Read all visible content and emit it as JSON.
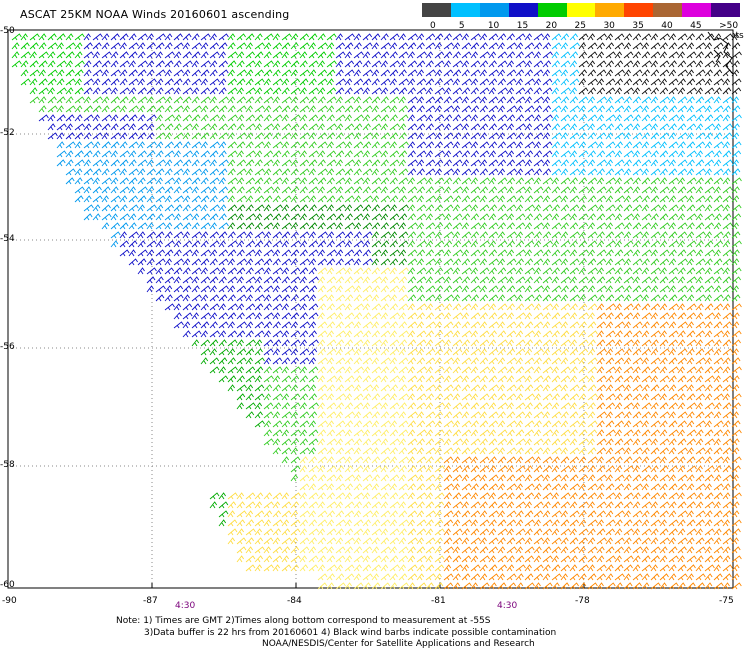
{
  "title": "ASCAT 25KM NOAA Winds 20160601 ascending",
  "legend": {
    "bins": [
      {
        "label": "0",
        "color": "#444444"
      },
      {
        "label": "5",
        "color": "#00c0ff"
      },
      {
        "label": "10",
        "color": "#0099ee"
      },
      {
        "label": "15",
        "color": "#1010c8"
      },
      {
        "label": "20",
        "color": "#00cc00"
      },
      {
        "label": "25",
        "color": "#ffff00"
      },
      {
        "label": "30",
        "color": "#ffaa00"
      },
      {
        "label": "35",
        "color": "#ff4400"
      },
      {
        "label": "40",
        "color": "#aa6633"
      },
      {
        "label": "45",
        "color": "#dd00dd"
      },
      {
        "label": ">50 knots",
        "color": "#440088"
      }
    ]
  },
  "axes": {
    "y_labels": [
      "-50",
      "-52",
      "-54",
      "-56",
      "-58",
      "-60"
    ],
    "x_labels": [
      "-90",
      "-87",
      "-84",
      "-81",
      "-78",
      "-75"
    ],
    "time_labels": [
      "4:30",
      "4:30"
    ]
  },
  "notes": {
    "line1": "Note: 1) Times are GMT 2)Times along bottom correspond to measurement at -55S",
    "line2": "3)Data buffer is 22 hrs from 20160601 4) Black wind barbs indicate possible contamination",
    "line3": "NOAA/NESDIS/Center for Satellite Applications and Research"
  }
}
